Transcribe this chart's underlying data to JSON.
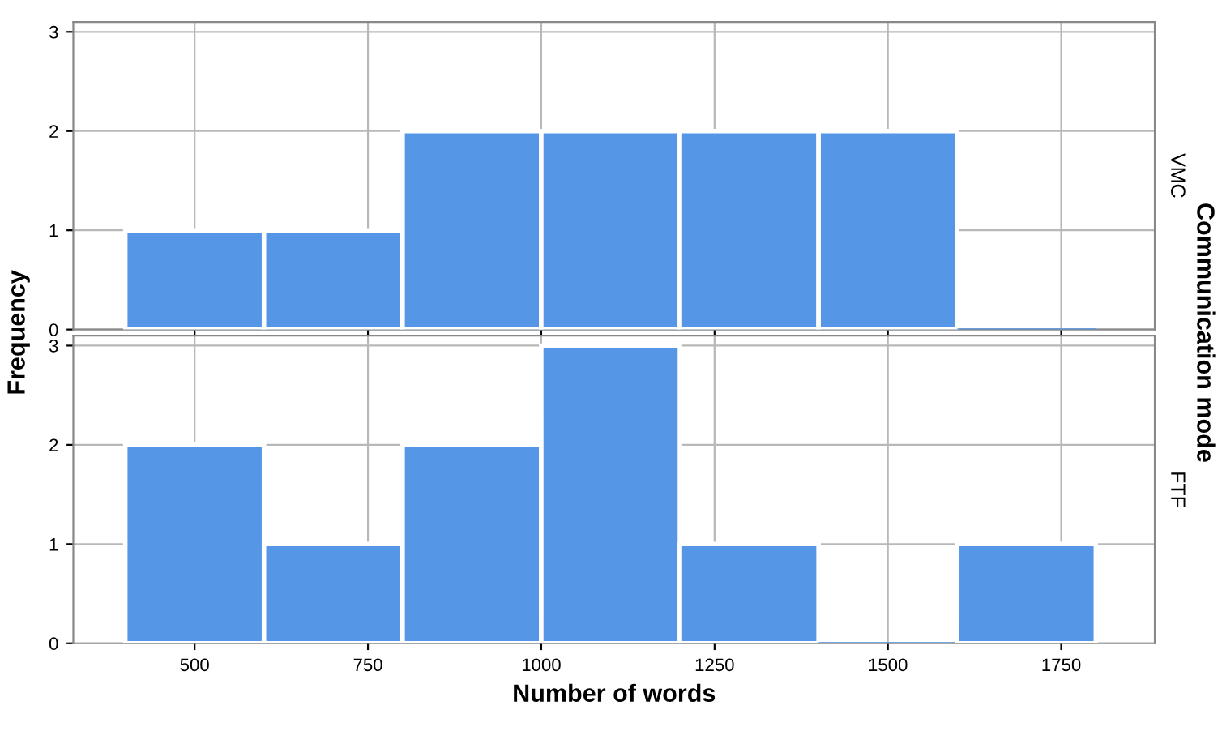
{
  "chart_data": [
    {
      "type": "histogram",
      "ylabel": "Frequency",
      "y2label": "VMC",
      "annotations": [
        "Communication mode"
      ],
      "bins": [
        400,
        600,
        800,
        1000,
        1200,
        1400,
        1600,
        1800
      ],
      "values": [
        1,
        1,
        2,
        2,
        2,
        2,
        0
      ],
      "color": "#5596e6",
      "xlim": [
        325,
        1885
      ],
      "xticks": [
        500,
        750,
        1000,
        1250,
        1500,
        1750
      ],
      "ylim": [
        0,
        3.1
      ],
      "yticks": [
        0,
        1,
        2,
        3
      ],
      "grid": true,
      "tick_labels": "y"
    },
    {
      "type": "histogram",
      "xlabel": "Number of words",
      "y2label": "FTF",
      "bins": [
        400,
        600,
        800,
        1000,
        1200,
        1400,
        1600,
        1800
      ],
      "values": [
        2,
        1,
        2,
        3,
        1,
        0,
        1
      ],
      "color": "#5596e6",
      "xlim": [
        325,
        1885
      ],
      "xticks": [
        500,
        750,
        1000,
        1250,
        1500,
        1750
      ],
      "ylim": [
        0,
        3.1
      ],
      "yticks": [
        0,
        1,
        2,
        3
      ],
      "grid": true
    }
  ]
}
